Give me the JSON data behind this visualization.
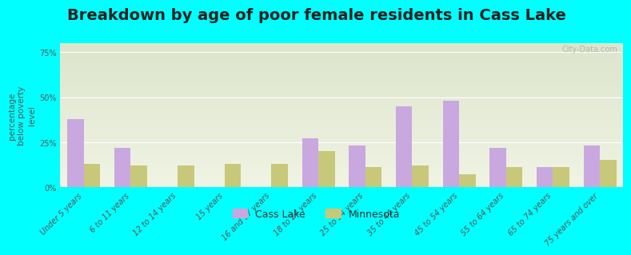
{
  "title": "Breakdown by age of poor female residents in Cass Lake",
  "categories": [
    "Under 5 years",
    "6 to 11 years",
    "12 to 14 years",
    "15 years",
    "16 and 17 years",
    "18 to 24 years",
    "25 to 34 years",
    "35 to 44 years",
    "45 to 54 years",
    "55 to 64 years",
    "65 to 74 years",
    "75 years and over"
  ],
  "cass_lake": [
    38,
    22,
    0,
    0,
    0,
    27,
    23,
    45,
    48,
    22,
    11,
    23
  ],
  "minnesota": [
    13,
    12,
    12,
    13,
    13,
    20,
    11,
    12,
    7,
    11,
    11,
    15
  ],
  "cass_lake_color": "#c9a8e0",
  "minnesota_color": "#c8c87a",
  "background_color": "#00ffff",
  "plot_bg_top": "#dde5cc",
  "plot_bg_bottom": "#f0f4e4",
  "ylabel": "percentage\nbelow poverty\nlevel",
  "yticks": [
    0,
    25,
    50,
    75
  ],
  "ylim": [
    0,
    80
  ],
  "title_fontsize": 14,
  "axis_label_fontsize": 7.5,
  "tick_fontsize": 7,
  "legend_label_cass": "Cass Lake",
  "legend_label_mn": "Minnesota",
  "bar_width": 0.35
}
